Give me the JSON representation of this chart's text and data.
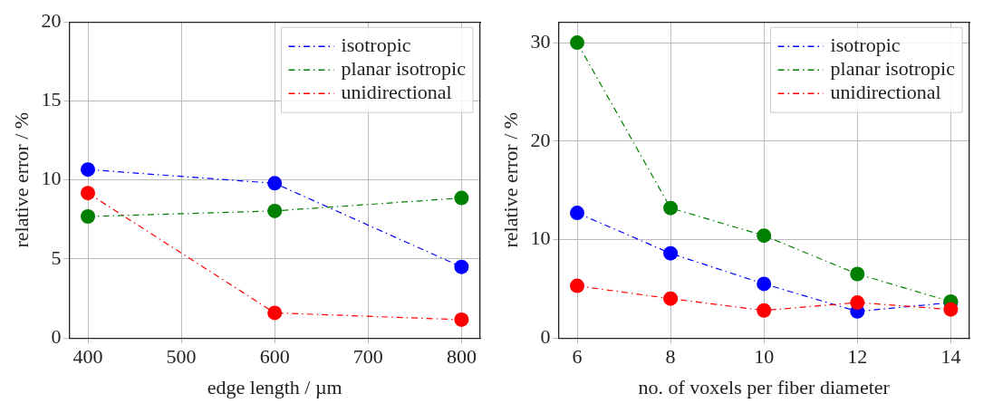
{
  "chart_data": [
    {
      "type": "line",
      "xlabel": "edge length / µm",
      "ylabel": "relative error / %",
      "x": [
        400,
        600,
        800
      ],
      "xlim": [
        380,
        820
      ],
      "xticks": [
        400,
        500,
        600,
        700,
        800
      ],
      "ylim": [
        0,
        20
      ],
      "yticks": [
        0,
        5,
        10,
        15,
        20
      ],
      "grid": true,
      "legend": "top right",
      "marker": "circle",
      "line_style": "dashed",
      "series": [
        {
          "name": "isotropic",
          "color": "#0000ff",
          "values": [
            10.66,
            9.79,
            4.5
          ]
        },
        {
          "name": "planar isotropic",
          "color": "#008000",
          "values": [
            7.69,
            8.04,
            8.86
          ]
        },
        {
          "name": "unidirectional",
          "color": "#ff0000",
          "values": [
            9.17,
            1.59,
            1.16
          ]
        }
      ]
    },
    {
      "type": "line",
      "xlabel": "no. of voxels per fiber diameter",
      "ylabel": "relative error / %",
      "x": [
        6,
        8,
        10,
        12,
        14
      ],
      "xlim": [
        5.6,
        14.4
      ],
      "xticks": [
        6,
        8,
        10,
        12,
        14
      ],
      "ylim": [
        0,
        32.1
      ],
      "yticks": [
        0,
        10,
        20,
        30
      ],
      "grid": true,
      "legend": "top right",
      "marker": "circle",
      "line_style": "dashed",
      "series": [
        {
          "name": "isotropic",
          "color": "#0000ff",
          "values": [
            12.7,
            8.6,
            5.5,
            2.7,
            3.6
          ]
        },
        {
          "name": "planar isotropic",
          "color": "#008000",
          "values": [
            30.0,
            13.2,
            10.4,
            6.5,
            3.7
          ]
        },
        {
          "name": "unidirectional",
          "color": "#ff0000",
          "values": [
            5.3,
            4.0,
            2.8,
            3.6,
            2.9
          ]
        }
      ]
    }
  ]
}
